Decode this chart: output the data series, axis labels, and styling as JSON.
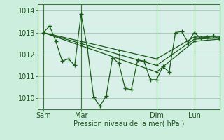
{
  "background_color": "#cceedd",
  "plot_bg_color": "#d8f0e8",
  "grid_color": "#aaccbb",
  "line_color": "#1a5c1a",
  "marker_color": "#1a5c1a",
  "xlabel": "Pression niveau de la mer( hPa )",
  "ylim": [
    1009.5,
    1014.3
  ],
  "yticks": [
    1010,
    1011,
    1012,
    1013,
    1014
  ],
  "xtick_labels": [
    "Sam",
    "Mar",
    "Dim",
    "Lun"
  ],
  "xtick_positions": [
    0,
    36,
    108,
    144
  ],
  "vline_positions": [
    0,
    36,
    108,
    144
  ],
  "xlim": [
    -5,
    168
  ],
  "series": [
    {
      "x": [
        0,
        6,
        12,
        18,
        24,
        30,
        36,
        42,
        48,
        54,
        60,
        66,
        72,
        78,
        84,
        90,
        96,
        102,
        108,
        114,
        120,
        126,
        132,
        138,
        144,
        150,
        156,
        162,
        168
      ],
      "y": [
        1013.0,
        1013.3,
        1012.6,
        1011.7,
        1011.8,
        1011.5,
        1013.85,
        1012.3,
        1010.05,
        1009.65,
        1010.1,
        1011.85,
        1011.6,
        1010.45,
        1010.4,
        1011.75,
        1011.7,
        1010.85,
        1010.85,
        1011.45,
        1011.2,
        1013.0,
        1013.05,
        1012.55,
        1013.0,
        1012.75,
        1012.8,
        1012.85,
        1012.7
      ]
    },
    {
      "x": [
        0,
        36,
        72,
        108,
        144,
        168
      ],
      "y": [
        1013.0,
        1012.6,
        1012.2,
        1011.8,
        1012.8,
        1012.8
      ]
    },
    {
      "x": [
        0,
        36,
        72,
        108,
        144,
        168
      ],
      "y": [
        1013.0,
        1012.5,
        1012.0,
        1011.5,
        1012.7,
        1012.75
      ]
    },
    {
      "x": [
        0,
        36,
        72,
        108,
        144,
        168
      ],
      "y": [
        1013.0,
        1012.4,
        1011.8,
        1011.2,
        1012.6,
        1012.7
      ]
    }
  ]
}
